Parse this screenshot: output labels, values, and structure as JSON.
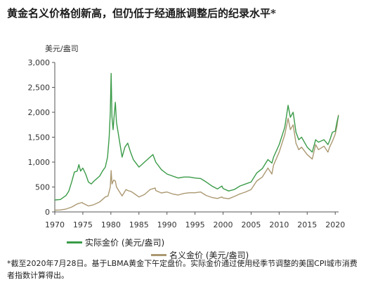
{
  "title": "黄金名义价格创新高，但仍低于经通胀调整后的纪录水平*",
  "footnote": "*截至2020年7月28日。基于LBMA黄金下午定盘价。实际金价通过使用经季节调整的美国CPI城市消费者指数计算得出。",
  "colors": {
    "real": "#3a9b48",
    "nominal": "#ab9871",
    "axis": "#555555"
  },
  "chart_data": {
    "type": "line",
    "ylabel": "美元/盎司",
    "xlim": [
      1970,
      2020.6
    ],
    "ylim": [
      0,
      3000
    ],
    "x_ticks": [
      1970,
      1975,
      1980,
      1985,
      1990,
      1995,
      2000,
      2005,
      2010,
      2015,
      2020
    ],
    "y_ticks": [
      0,
      500,
      1000,
      1500,
      2000,
      2500,
      3000
    ],
    "y_tick_labels": [
      "0",
      "500",
      "1,000",
      "1,500",
      "2,000",
      "2,500",
      "3,000"
    ],
    "series": [
      {
        "name": "实际金价 (美元/盎司)",
        "color": "#3a9b48",
        "points": [
          [
            1970,
            240
          ],
          [
            1971,
            250
          ],
          [
            1971.5,
            290
          ],
          [
            1972,
            330
          ],
          [
            1972.5,
            420
          ],
          [
            1973,
            600
          ],
          [
            1973.5,
            800
          ],
          [
            1974,
            820
          ],
          [
            1974.3,
            950
          ],
          [
            1974.6,
            820
          ],
          [
            1975,
            880
          ],
          [
            1975.5,
            760
          ],
          [
            1976,
            600
          ],
          [
            1976.5,
            560
          ],
          [
            1977,
            620
          ],
          [
            1978,
            720
          ],
          [
            1978.5,
            820
          ],
          [
            1979,
            900
          ],
          [
            1979.4,
            1100
          ],
          [
            1979.7,
            1500
          ],
          [
            1979.9,
            2000
          ],
          [
            1980.05,
            2780
          ],
          [
            1980.2,
            1900
          ],
          [
            1980.4,
            1650
          ],
          [
            1980.6,
            1950
          ],
          [
            1980.8,
            2200
          ],
          [
            1981,
            1800
          ],
          [
            1981.5,
            1450
          ],
          [
            1982,
            1100
          ],
          [
            1982.5,
            1300
          ],
          [
            1983,
            1380
          ],
          [
            1983.5,
            1200
          ],
          [
            1984,
            1050
          ],
          [
            1985,
            900
          ],
          [
            1985.5,
            950
          ],
          [
            1986,
            1000
          ],
          [
            1987,
            1100
          ],
          [
            1987.5,
            1150
          ],
          [
            1988,
            1000
          ],
          [
            1989,
            850
          ],
          [
            1990,
            760
          ],
          [
            1991,
            720
          ],
          [
            1992,
            680
          ],
          [
            1993,
            700
          ],
          [
            1994,
            700
          ],
          [
            1995,
            680
          ],
          [
            1996,
            670
          ],
          [
            1997,
            600
          ],
          [
            1998,
            520
          ],
          [
            1999,
            460
          ],
          [
            1999.8,
            520
          ],
          [
            2000,
            470
          ],
          [
            2001,
            420
          ],
          [
            2002,
            450
          ],
          [
            2003,
            520
          ],
          [
            2004,
            560
          ],
          [
            2005,
            600
          ],
          [
            2006,
            780
          ],
          [
            2007,
            870
          ],
          [
            2008,
            1050
          ],
          [
            2008.7,
            980
          ],
          [
            2009,
            1100
          ],
          [
            2010,
            1350
          ],
          [
            2011,
            1700
          ],
          [
            2011.6,
            2140
          ],
          [
            2012,
            1900
          ],
          [
            2012.5,
            2000
          ],
          [
            2013,
            1600
          ],
          [
            2013.5,
            1450
          ],
          [
            2014,
            1500
          ],
          [
            2015,
            1300
          ],
          [
            2015.9,
            1200
          ],
          [
            2016.5,
            1450
          ],
          [
            2017,
            1400
          ],
          [
            2018,
            1450
          ],
          [
            2018.7,
            1350
          ],
          [
            2019,
            1430
          ],
          [
            2019.5,
            1600
          ],
          [
            2020,
            1620
          ],
          [
            2020.3,
            1800
          ],
          [
            2020.58,
            1930
          ]
        ]
      },
      {
        "name": "名义金价 (美元/盎司)",
        "color": "#ab9871",
        "points": [
          [
            1970,
            35
          ],
          [
            1971,
            40
          ],
          [
            1972,
            58
          ],
          [
            1973,
            97
          ],
          [
            1974,
            160
          ],
          [
            1974.9,
            190
          ],
          [
            1975,
            175
          ],
          [
            1976,
            120
          ],
          [
            1976.8,
            140
          ],
          [
            1977,
            148
          ],
          [
            1978,
            200
          ],
          [
            1979,
            300
          ],
          [
            1979.5,
            320
          ],
          [
            1979.9,
            500
          ],
          [
            1980.05,
            830
          ],
          [
            1980.2,
            560
          ],
          [
            1980.5,
            640
          ],
          [
            1980.8,
            620
          ],
          [
            1981,
            500
          ],
          [
            1982,
            320
          ],
          [
            1982.7,
            450
          ],
          [
            1983,
            430
          ],
          [
            1983.6,
            410
          ],
          [
            1984,
            380
          ],
          [
            1985,
            300
          ],
          [
            1986,
            350
          ],
          [
            1987,
            450
          ],
          [
            1987.9,
            480
          ],
          [
            1988,
            430
          ],
          [
            1989,
            380
          ],
          [
            1990,
            400
          ],
          [
            1991,
            360
          ],
          [
            1992,
            340
          ],
          [
            1993,
            370
          ],
          [
            1994,
            385
          ],
          [
            1995,
            385
          ],
          [
            1996,
            400
          ],
          [
            1997,
            330
          ],
          [
            1998,
            290
          ],
          [
            1999,
            270
          ],
          [
            1999.8,
            300
          ],
          [
            2000,
            280
          ],
          [
            2001,
            265
          ],
          [
            2002,
            310
          ],
          [
            2003,
            360
          ],
          [
            2004,
            400
          ],
          [
            2005,
            450
          ],
          [
            2006,
            620
          ],
          [
            2007,
            700
          ],
          [
            2008,
            880
          ],
          [
            2008.7,
            760
          ],
          [
            2009,
            940
          ],
          [
            2010,
            1200
          ],
          [
            2011,
            1550
          ],
          [
            2011.6,
            1880
          ],
          [
            2012,
            1650
          ],
          [
            2012.5,
            1750
          ],
          [
            2013,
            1380
          ],
          [
            2013.5,
            1250
          ],
          [
            2014,
            1300
          ],
          [
            2015,
            1150
          ],
          [
            2015.9,
            1060
          ],
          [
            2016.5,
            1350
          ],
          [
            2017,
            1250
          ],
          [
            2018,
            1320
          ],
          [
            2018.7,
            1200
          ],
          [
            2019,
            1300
          ],
          [
            2019.5,
            1420
          ],
          [
            2020,
            1560
          ],
          [
            2020.3,
            1720
          ],
          [
            2020.58,
            1950
          ]
        ]
      }
    ]
  }
}
